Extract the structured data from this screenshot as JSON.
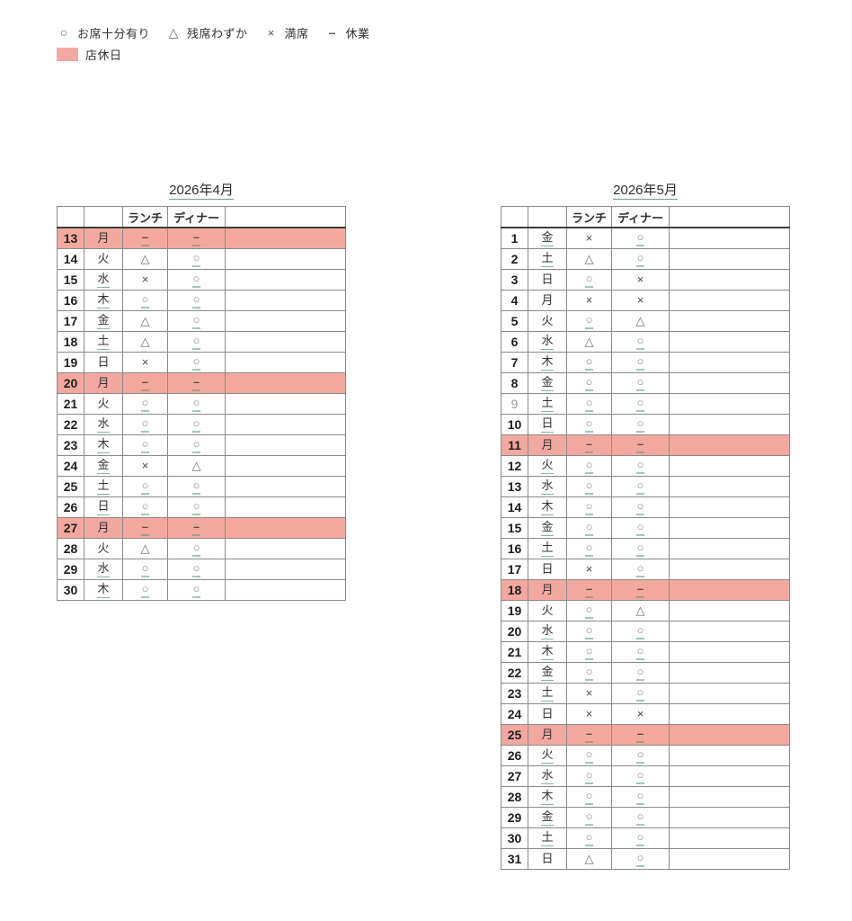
{
  "symbols": {
    "circle": "○",
    "triangle": "△",
    "cross": "×",
    "dash": "–"
  },
  "legend": {
    "items": [
      {
        "symbol": "circle",
        "label": "お席十分有り"
      },
      {
        "symbol": "triangle",
        "label": "残席わずか"
      },
      {
        "symbol": "cross",
        "label": "満席"
      },
      {
        "symbol": "dash",
        "label": "休業"
      }
    ],
    "holiday_label": "店休日"
  },
  "columns": {
    "lunch": "ランチ",
    "dinner": "ディナー"
  },
  "colors": {
    "holiday_bg": "#f3a89f",
    "link_underline": "#86b49a",
    "symbol_underline": "#a3c9b1",
    "border": "#8a8a8a",
    "header_border": "#3c3c3c",
    "text": "#333333",
    "day_number": "#1d1d1d",
    "muted_day_number": "#9a9a9a",
    "circle_symbol": "#8a8a8a",
    "cross_symbol": "#4a4a4a",
    "dash_symbol": "#5e4f4a"
  },
  "months": [
    {
      "title": "2026年4月",
      "rows": [
        {
          "day": "13",
          "wd": "月",
          "lunch": "dash",
          "dinner": "dash",
          "holiday": true,
          "wdLink": false,
          "dayMuted": false
        },
        {
          "day": "14",
          "wd": "火",
          "lunch": "triangle",
          "dinner": "circle",
          "holiday": false,
          "wdLink": false,
          "dayMuted": false
        },
        {
          "day": "15",
          "wd": "水",
          "lunch": "cross",
          "dinner": "circle",
          "holiday": false,
          "wdLink": true,
          "dayMuted": false
        },
        {
          "day": "16",
          "wd": "木",
          "lunch": "circle",
          "dinner": "circle",
          "holiday": false,
          "wdLink": true,
          "dayMuted": false
        },
        {
          "day": "17",
          "wd": "金",
          "lunch": "triangle",
          "dinner": "circle",
          "holiday": false,
          "wdLink": true,
          "dayMuted": false
        },
        {
          "day": "18",
          "wd": "土",
          "lunch": "triangle",
          "dinner": "circle",
          "holiday": false,
          "wdLink": true,
          "dayMuted": false
        },
        {
          "day": "19",
          "wd": "日",
          "lunch": "cross",
          "dinner": "circle",
          "holiday": false,
          "wdLink": false,
          "dayMuted": false
        },
        {
          "day": "20",
          "wd": "月",
          "lunch": "dash",
          "dinner": "dash",
          "holiday": true,
          "wdLink": false,
          "dayMuted": false
        },
        {
          "day": "21",
          "wd": "火",
          "lunch": "circle",
          "dinner": "circle",
          "holiday": false,
          "wdLink": false,
          "dayMuted": false
        },
        {
          "day": "22",
          "wd": "水",
          "lunch": "circle",
          "dinner": "circle",
          "holiday": false,
          "wdLink": true,
          "dayMuted": false
        },
        {
          "day": "23",
          "wd": "木",
          "lunch": "circle",
          "dinner": "circle",
          "holiday": false,
          "wdLink": true,
          "dayMuted": false
        },
        {
          "day": "24",
          "wd": "金",
          "lunch": "cross",
          "dinner": "triangle",
          "holiday": false,
          "wdLink": true,
          "dayMuted": false
        },
        {
          "day": "25",
          "wd": "土",
          "lunch": "circle",
          "dinner": "circle",
          "holiday": false,
          "wdLink": true,
          "dayMuted": false
        },
        {
          "day": "26",
          "wd": "日",
          "lunch": "circle",
          "dinner": "circle",
          "holiday": false,
          "wdLink": true,
          "dayMuted": false
        },
        {
          "day": "27",
          "wd": "月",
          "lunch": "dash",
          "dinner": "dash",
          "holiday": true,
          "wdLink": false,
          "dayMuted": false
        },
        {
          "day": "28",
          "wd": "火",
          "lunch": "triangle",
          "dinner": "circle",
          "holiday": false,
          "wdLink": false,
          "dayMuted": false
        },
        {
          "day": "29",
          "wd": "水",
          "lunch": "circle",
          "dinner": "circle",
          "holiday": false,
          "wdLink": true,
          "dayMuted": false
        },
        {
          "day": "30",
          "wd": "木",
          "lunch": "circle",
          "dinner": "circle",
          "holiday": false,
          "wdLink": true,
          "dayMuted": false
        }
      ]
    },
    {
      "title": "2026年5月",
      "rows": [
        {
          "day": "1",
          "wd": "金",
          "lunch": "cross",
          "dinner": "circle",
          "holiday": false,
          "wdLink": true,
          "dayMuted": false
        },
        {
          "day": "2",
          "wd": "土",
          "lunch": "triangle",
          "dinner": "circle",
          "holiday": false,
          "wdLink": true,
          "dayMuted": false
        },
        {
          "day": "3",
          "wd": "日",
          "lunch": "circle",
          "dinner": "cross",
          "holiday": false,
          "wdLink": false,
          "dayMuted": false
        },
        {
          "day": "4",
          "wd": "月",
          "lunch": "cross",
          "dinner": "cross",
          "holiday": false,
          "wdLink": false,
          "dayMuted": false
        },
        {
          "day": "5",
          "wd": "火",
          "lunch": "circle",
          "dinner": "triangle",
          "holiday": false,
          "wdLink": false,
          "dayMuted": false
        },
        {
          "day": "6",
          "wd": "水",
          "lunch": "triangle",
          "dinner": "circle",
          "holiday": false,
          "wdLink": true,
          "dayMuted": false
        },
        {
          "day": "7",
          "wd": "木",
          "lunch": "circle",
          "dinner": "circle",
          "holiday": false,
          "wdLink": true,
          "dayMuted": false
        },
        {
          "day": "8",
          "wd": "金",
          "lunch": "circle",
          "dinner": "circle",
          "holiday": false,
          "wdLink": true,
          "dayMuted": false
        },
        {
          "day": "9",
          "wd": "土",
          "lunch": "circle",
          "dinner": "circle",
          "holiday": false,
          "wdLink": true,
          "dayMuted": true
        },
        {
          "day": "10",
          "wd": "日",
          "lunch": "circle",
          "dinner": "circle",
          "holiday": false,
          "wdLink": true,
          "dayMuted": false
        },
        {
          "day": "11",
          "wd": "月",
          "lunch": "dash",
          "dinner": "dash",
          "holiday": true,
          "wdLink": false,
          "dayMuted": false
        },
        {
          "day": "12",
          "wd": "火",
          "lunch": "circle",
          "dinner": "circle",
          "holiday": false,
          "wdLink": true,
          "dayMuted": false
        },
        {
          "day": "13",
          "wd": "水",
          "lunch": "circle",
          "dinner": "circle",
          "holiday": false,
          "wdLink": true,
          "dayMuted": false
        },
        {
          "day": "14",
          "wd": "木",
          "lunch": "circle",
          "dinner": "circle",
          "holiday": false,
          "wdLink": true,
          "dayMuted": false
        },
        {
          "day": "15",
          "wd": "金",
          "lunch": "circle",
          "dinner": "circle",
          "holiday": false,
          "wdLink": true,
          "dayMuted": false
        },
        {
          "day": "16",
          "wd": "土",
          "lunch": "circle",
          "dinner": "circle",
          "holiday": false,
          "wdLink": true,
          "dayMuted": false
        },
        {
          "day": "17",
          "wd": "日",
          "lunch": "cross",
          "dinner": "circle",
          "holiday": false,
          "wdLink": false,
          "dayMuted": false
        },
        {
          "day": "18",
          "wd": "月",
          "lunch": "dash",
          "dinner": "dash",
          "holiday": true,
          "wdLink": false,
          "dayMuted": false
        },
        {
          "day": "19",
          "wd": "火",
          "lunch": "circle",
          "dinner": "triangle",
          "holiday": false,
          "wdLink": false,
          "dayMuted": false
        },
        {
          "day": "20",
          "wd": "水",
          "lunch": "circle",
          "dinner": "circle",
          "holiday": false,
          "wdLink": true,
          "dayMuted": false
        },
        {
          "day": "21",
          "wd": "木",
          "lunch": "circle",
          "dinner": "circle",
          "holiday": false,
          "wdLink": true,
          "dayMuted": false
        },
        {
          "day": "22",
          "wd": "金",
          "lunch": "circle",
          "dinner": "circle",
          "holiday": false,
          "wdLink": true,
          "dayMuted": false
        },
        {
          "day": "23",
          "wd": "土",
          "lunch": "cross",
          "dinner": "circle",
          "holiday": false,
          "wdLink": true,
          "dayMuted": false
        },
        {
          "day": "24",
          "wd": "日",
          "lunch": "cross",
          "dinner": "cross",
          "holiday": false,
          "wdLink": false,
          "dayMuted": false
        },
        {
          "day": "25",
          "wd": "月",
          "lunch": "dash",
          "dinner": "dash",
          "holiday": true,
          "wdLink": false,
          "dayMuted": false
        },
        {
          "day": "26",
          "wd": "火",
          "lunch": "circle",
          "dinner": "circle",
          "holiday": false,
          "wdLink": true,
          "dayMuted": false
        },
        {
          "day": "27",
          "wd": "水",
          "lunch": "circle",
          "dinner": "circle",
          "holiday": false,
          "wdLink": true,
          "dayMuted": false
        },
        {
          "day": "28",
          "wd": "木",
          "lunch": "circle",
          "dinner": "circle",
          "holiday": false,
          "wdLink": true,
          "dayMuted": false
        },
        {
          "day": "29",
          "wd": "金",
          "lunch": "circle",
          "dinner": "circle",
          "holiday": false,
          "wdLink": true,
          "dayMuted": false
        },
        {
          "day": "30",
          "wd": "土",
          "lunch": "circle",
          "dinner": "circle",
          "holiday": false,
          "wdLink": true,
          "dayMuted": false
        },
        {
          "day": "31",
          "wd": "日",
          "lunch": "triangle",
          "dinner": "circle",
          "holiday": false,
          "wdLink": false,
          "dayMuted": false
        }
      ]
    }
  ]
}
